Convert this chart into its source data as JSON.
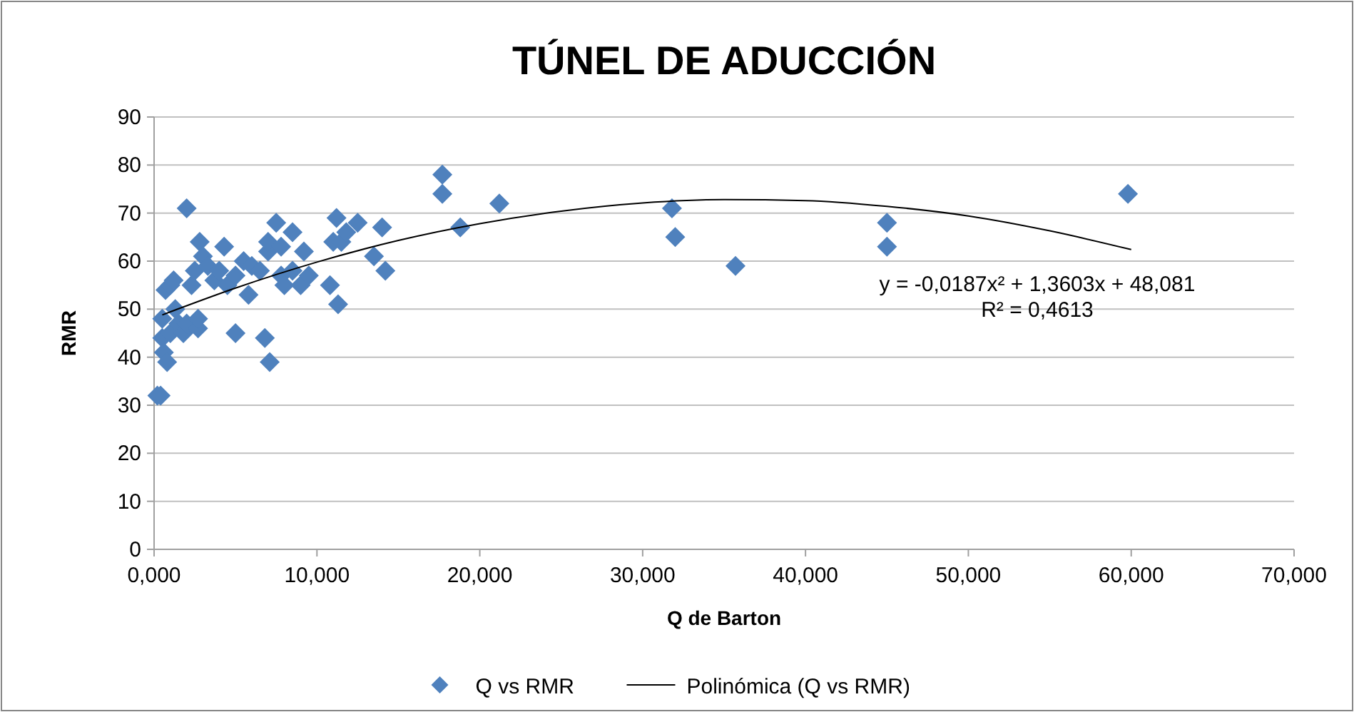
{
  "chart_data": {
    "type": "scatter",
    "title": "TÚNEL DE ADUCCIÓN",
    "xlabel": "Q de Barton",
    "ylabel": "RMR",
    "xlim": [
      0,
      70
    ],
    "ylim": [
      0,
      90
    ],
    "xticks": [
      {
        "value": 0,
        "label": "0,000"
      },
      {
        "value": 10,
        "label": "10,000"
      },
      {
        "value": 20,
        "label": "20,000"
      },
      {
        "value": 30,
        "label": "30,000"
      },
      {
        "value": 40,
        "label": "40,000"
      },
      {
        "value": 50,
        "label": "50,000"
      },
      {
        "value": 60,
        "label": "60,000"
      },
      {
        "value": 70,
        "label": "70,000"
      }
    ],
    "yticks": [
      0,
      10,
      20,
      30,
      40,
      50,
      60,
      70,
      80,
      90
    ],
    "grid": "y",
    "legend": "bottom",
    "marker": "diamond",
    "annotations": [
      "y = -0,0187x² + 1,3603x + 48,081",
      "R² = 0,4613"
    ],
    "series": [
      {
        "name": "Q vs RMR",
        "color": "#4f81bd",
        "x": [
          0.2,
          0.4,
          0.5,
          0.5,
          0.6,
          0.7,
          0.8,
          1,
          1,
          1.2,
          1.3,
          1.5,
          1.8,
          2,
          2,
          2.3,
          2.5,
          2.7,
          2.8,
          2.7,
          3,
          3.3,
          3.7,
          4,
          4.3,
          4.5,
          5,
          5,
          5.5,
          5.8,
          6,
          6.5,
          6.8,
          7,
          7.1,
          7,
          7.5,
          7.8,
          7.8,
          8,
          8.5,
          8.5,
          9,
          9.2,
          9.5,
          10.8,
          11,
          11.2,
          11.3,
          11.5,
          11.8,
          12.5,
          13.5,
          14,
          14.2,
          17.7,
          17.7,
          18.8,
          21.2,
          31.8,
          32,
          35.7,
          45,
          45,
          59.8
        ],
        "values": [
          32,
          32,
          48,
          44,
          41,
          54,
          39,
          55,
          45,
          56,
          50,
          47,
          45,
          71,
          47,
          55,
          58,
          46,
          64,
          48,
          61,
          59,
          56,
          58,
          63,
          55,
          45,
          57,
          60,
          53,
          59,
          58,
          44,
          62,
          39,
          64,
          68,
          57,
          63,
          55,
          66,
          58,
          55,
          62,
          57,
          55,
          64,
          69,
          51,
          64,
          66,
          68,
          61,
          67,
          58,
          78,
          74,
          67,
          72,
          71,
          65,
          59,
          68,
          63,
          74
        ]
      },
      {
        "name": "Polinómica (Q vs RMR)",
        "type": "line",
        "color": "#000000",
        "marker": "none",
        "x": [
          0.5,
          5,
          10,
          15,
          20,
          25,
          30,
          35,
          40,
          45,
          50,
          55,
          60
        ],
        "values": [
          48.8,
          54.4,
          59.8,
          64.3,
          67.8,
          70.4,
          72.1,
          72.8,
          72.6,
          71.4,
          69.4,
          66.3,
          62.4
        ]
      }
    ]
  }
}
